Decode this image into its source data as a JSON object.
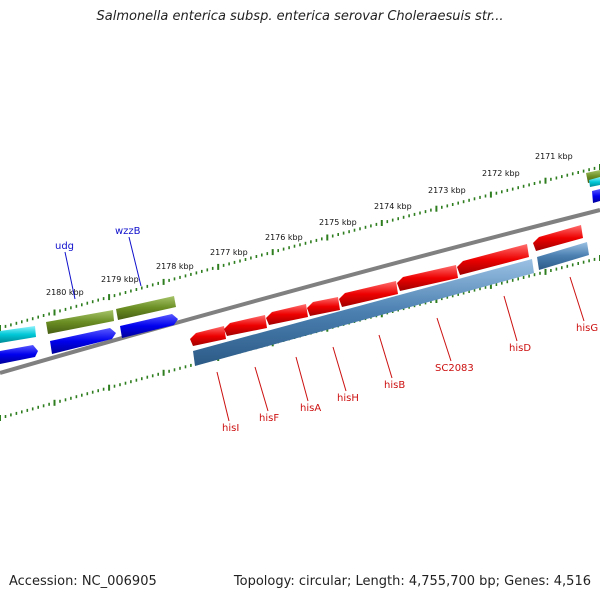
{
  "title": "Salmonella enterica subsp. enterica serovar Choleraesuis str...",
  "footer": {
    "accession": "Accession: NC_006905",
    "summary": "Topology: circular; Length: 4,755,700 bp; Genes: 4,516"
  },
  "scale_labels": [
    "2171 kbp",
    "2172 kbp",
    "2173 kbp",
    "2174 kbp",
    "2175 kbp",
    "2176 kbp",
    "2177 kbp",
    "2178 kbp",
    "2179 kbp",
    "2180 kbp"
  ],
  "genes_top": [
    "udg",
    "wzzB"
  ],
  "genes_bottom": [
    "hisI",
    "hisF",
    "hisA",
    "hisH",
    "hisB",
    "SC2083",
    "hisD",
    "hisG"
  ],
  "colors": {
    "backbone": "#808080",
    "tick": "#2e7d1f",
    "forward_cds": "#0000ee",
    "olive_feature": "#6b8e23",
    "cyan_feature": "#00c8d8",
    "reverse_cds": "#ee0000",
    "steel_feature": "#4a7fb0",
    "top_label": "#1010cc",
    "bottom_label": "#cc1010"
  }
}
